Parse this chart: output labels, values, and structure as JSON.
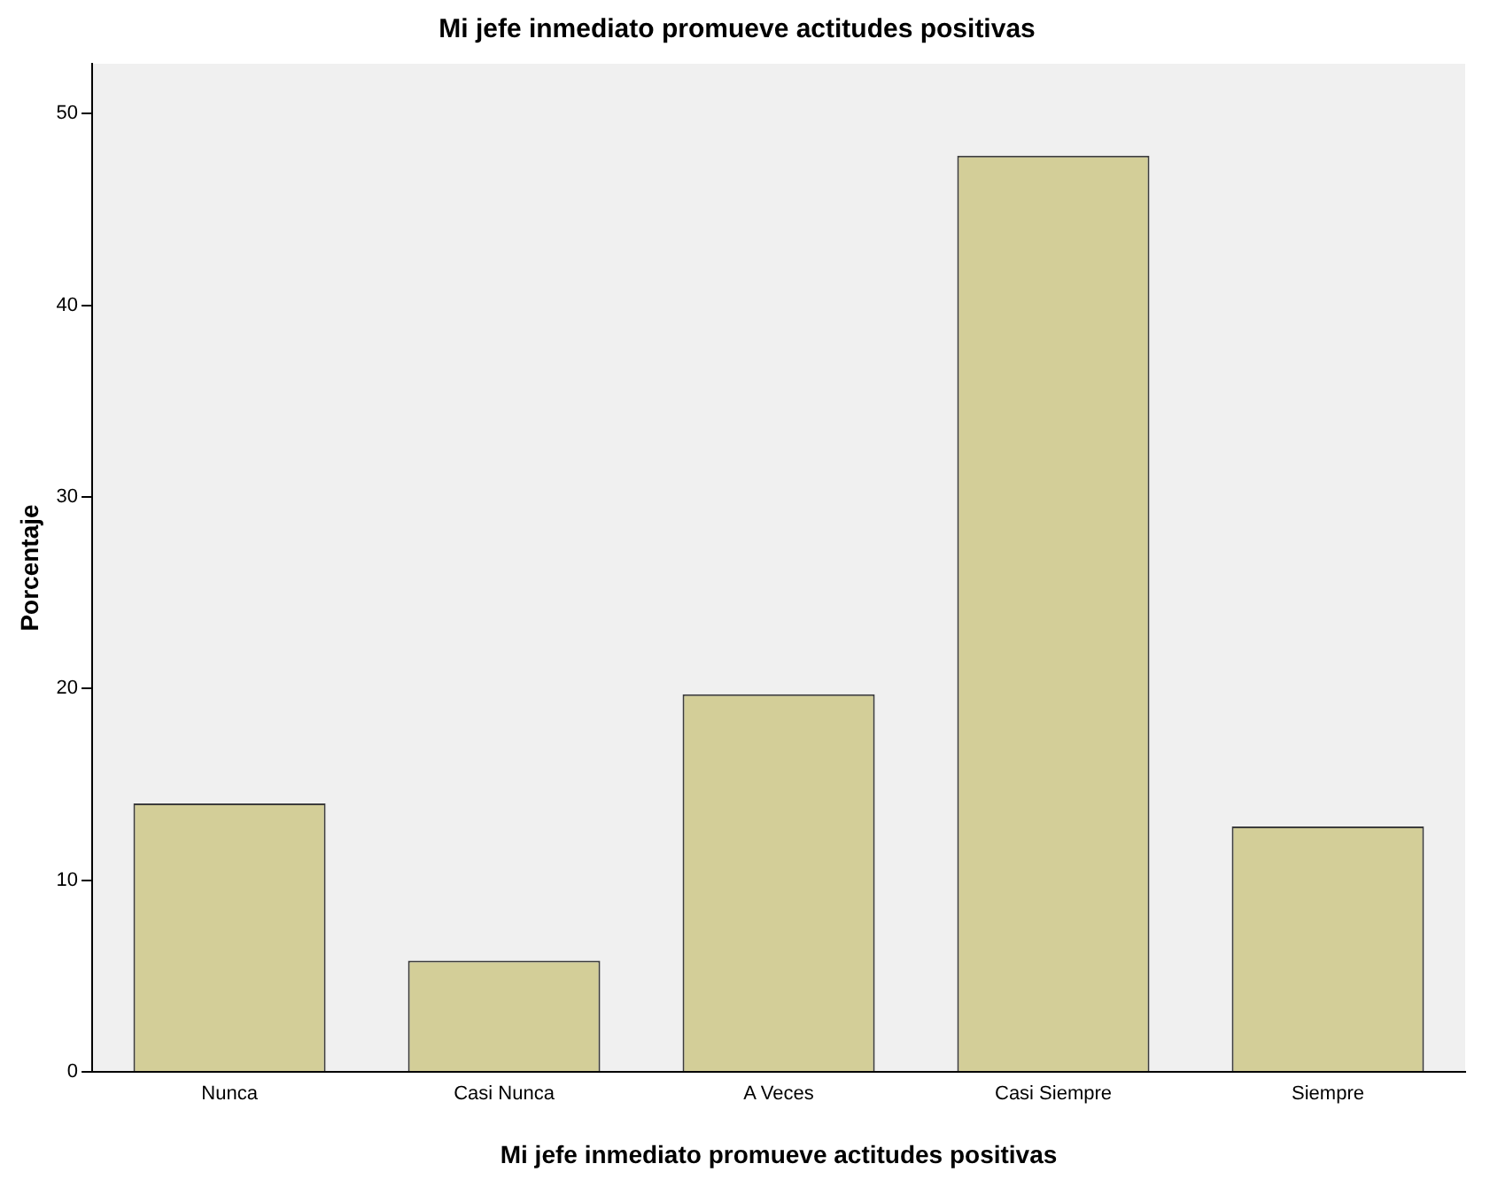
{
  "chart_data": {
    "type": "bar",
    "title": "Mi jefe inmediato promueve actitudes positivas",
    "xlabel": "Mi jefe inmediato promueve actitudes positivas",
    "ylabel": "Porcentaje",
    "categories": [
      "Nunca",
      "Casi Nunca",
      "A Veces",
      "Casi Siempre",
      "Siempre"
    ],
    "values": [
      14.0,
      5.8,
      19.7,
      47.8,
      12.8
    ],
    "color": "#d3ce98",
    "ylim": [
      0,
      52.6
    ],
    "yticks": [
      0,
      10,
      20,
      30,
      40,
      50
    ],
    "grid": false,
    "legend": false
  }
}
